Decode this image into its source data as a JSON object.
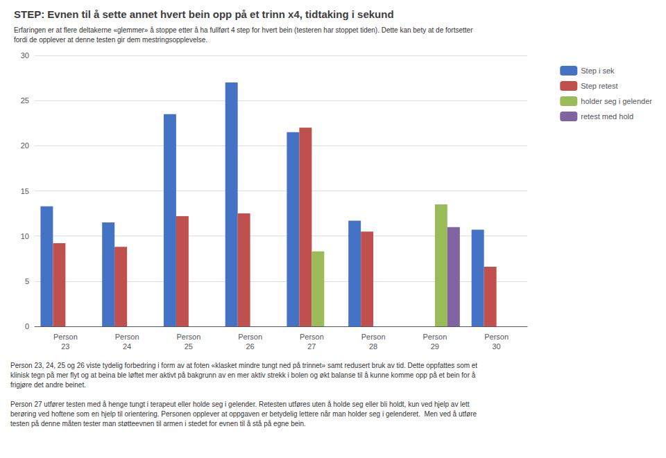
{
  "chart_data": {
    "type": "bar",
    "title": "STEP: Evnen til å sette annet hvert bein opp på et trinn x4, tidtaking i sekund",
    "subtitle": [
      "Erfaringen er at flere deltakerne «glemmer» å stoppe etter å ha fullført 4 step for hvert bein (testeren har stoppet tiden). Dette kan bety at de fortsetter",
      "fordi de opplever at denne testen gir dem mestringsopplevelse."
    ],
    "annotations": [
      [
        "Person 23, 24, 25 og 26 viste tydelig forbedring i form av at foten «klasket mindre tungt ned på trinnet» samt redusert bruk av tid. Dette oppfattes som et",
        "klinisk tegn på mer flyt og at beina ble løftet mer aktivt på bakgrunn av en mer aktiv strekk i bolen og økt balanse til å kunne komme opp på et bein for å",
        "frigjøre det andre beinet."
      ],
      [
        "Person 27 utfører testen med å henge tungt i terapeut eller holde seg i gelender. Retesten utføres uten å holde seg eller bli holdt, kun ved hjelp av lett",
        "berøring ved hoftene som en hjelp til orientering. Personen opplever at oppgaven er betydelig lettere når man holder seg i gelenderet.  Men ved å utføre",
        "testen på denne måten tester man støtteevnen til armen i stedet for evnen til å stå på egne bein."
      ]
    ],
    "categories": [
      "Person\n23",
      "Person\n24",
      "Person\n25",
      "Person\n26",
      "Person\n27",
      "Person\n28",
      "Person\n29",
      "Person\n30"
    ],
    "series": [
      {
        "name": "Step i sek",
        "color": "#4472C4",
        "values": [
          13.3,
          11.5,
          23.5,
          27.0,
          21.5,
          11.7,
          0.0,
          10.7
        ]
      },
      {
        "name": "Step retest",
        "color": "#C0504D",
        "values": [
          9.2,
          8.8,
          12.2,
          12.5,
          22.0,
          10.5,
          0.0,
          6.6
        ]
      },
      {
        "name": "holder seg i gelender",
        "color": "#9BBB59",
        "values": [
          0.0,
          0.0,
          0.0,
          0.0,
          8.3,
          0.0,
          13.5,
          0.0
        ]
      },
      {
        "name": "retest med hold",
        "color": "#8064A2",
        "values": [
          0.0,
          0.0,
          0.0,
          0.0,
          0.0,
          0.0,
          11.0,
          0.0
        ]
      }
    ],
    "ylim": [
      0,
      30
    ],
    "yticks": [
      0,
      5,
      10,
      15,
      20,
      25,
      30
    ],
    "grid": true,
    "legend": "upper right"
  }
}
